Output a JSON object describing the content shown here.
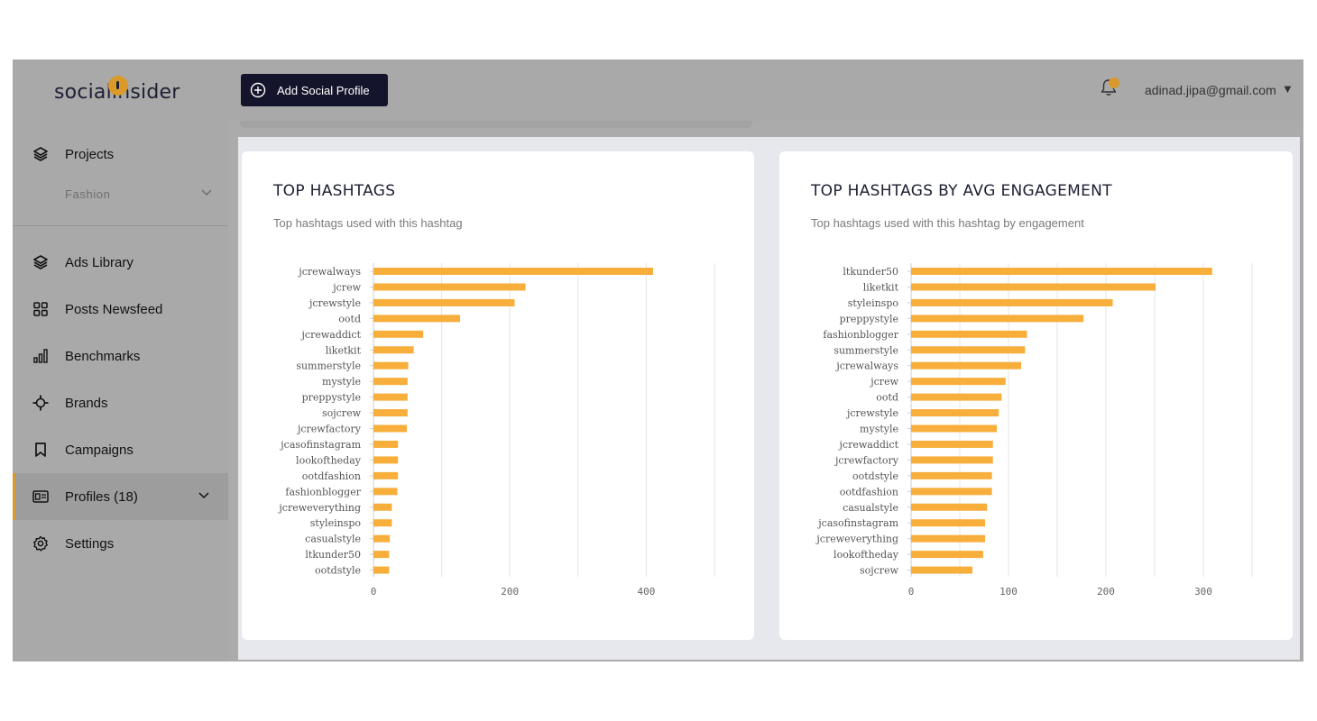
{
  "app": {
    "logo": "socialinsider"
  },
  "header": {
    "add_profile_label": "Add Social Profile",
    "user_email": "adinad.jipa@gmail.com",
    "caret": "▼"
  },
  "sidebar": {
    "projects_label": "Projects",
    "project_selected": "Fashion",
    "items": [
      {
        "label": "Ads Library",
        "icon": "layers-icon"
      },
      {
        "label": "Posts Newsfeed",
        "icon": "grid-icon"
      },
      {
        "label": "Benchmarks",
        "icon": "bar-chart-icon"
      },
      {
        "label": "Brands",
        "icon": "crosshair-icon"
      },
      {
        "label": "Campaigns",
        "icon": "bookmark-icon"
      },
      {
        "label": "Profiles (18)",
        "icon": "id-card-icon"
      },
      {
        "label": "Settings",
        "icon": "gear-icon"
      }
    ]
  },
  "colors": {
    "bar": "#f7ae3b",
    "accent": "#d99a2b",
    "button": "#14152c"
  },
  "cards": [
    {
      "title": "TOP HASHTAGS",
      "subtitle": "Top hashtags used with this hashtag"
    },
    {
      "title": "TOP HASHTAGS BY AVG ENGAGEMENT",
      "subtitle": "Top hashtags used with this hashtag by engagement"
    }
  ],
  "chart_data": [
    {
      "type": "bar",
      "orientation": "horizontal",
      "title": "TOP HASHTAGS",
      "categories": [
        "jcrewalways",
        "jcrew",
        "jcrewstyle",
        "ootd",
        "jcrewaddict",
        "liketkit",
        "summerstyle",
        "mystyle",
        "preppystyle",
        "sojcrew",
        "jcrewfactory",
        "jcasofinstagram",
        "lookoftheday",
        "ootdfashion",
        "fashionblogger",
        "jcreweverything",
        "styleinspo",
        "casualstyle",
        "ltkunder50",
        "ootdstyle"
      ],
      "values": [
        410,
        223,
        207,
        127,
        73,
        59,
        51,
        50,
        50,
        50,
        49,
        36,
        36,
        36,
        35,
        27,
        27,
        24,
        23,
        23
      ],
      "xticks": [
        0,
        200,
        400
      ],
      "xlim": [
        0,
        500
      ],
      "grid": true
    },
    {
      "type": "bar",
      "orientation": "horizontal",
      "title": "TOP HASHTAGS BY AVG ENGAGEMENT",
      "categories": [
        "ltkunder50",
        "liketkit",
        "styleinspo",
        "preppystyle",
        "fashionblogger",
        "summerstyle",
        "jcrewalways",
        "jcrew",
        "ootd",
        "jcrewstyle",
        "mystyle",
        "jcrewaddict",
        "jcrewfactory",
        "ootdstyle",
        "ootdfashion",
        "casualstyle",
        "jcasofinstagram",
        "jcreweverything",
        "lookoftheday",
        "sojcrew"
      ],
      "values": [
        309,
        251,
        207,
        177,
        119,
        117,
        113,
        97,
        93,
        90,
        88,
        84,
        84,
        83,
        83,
        78,
        76,
        76,
        74,
        63
      ],
      "xticks": [
        0,
        100,
        200,
        300
      ],
      "xlim": [
        0,
        350
      ],
      "grid": true
    }
  ]
}
